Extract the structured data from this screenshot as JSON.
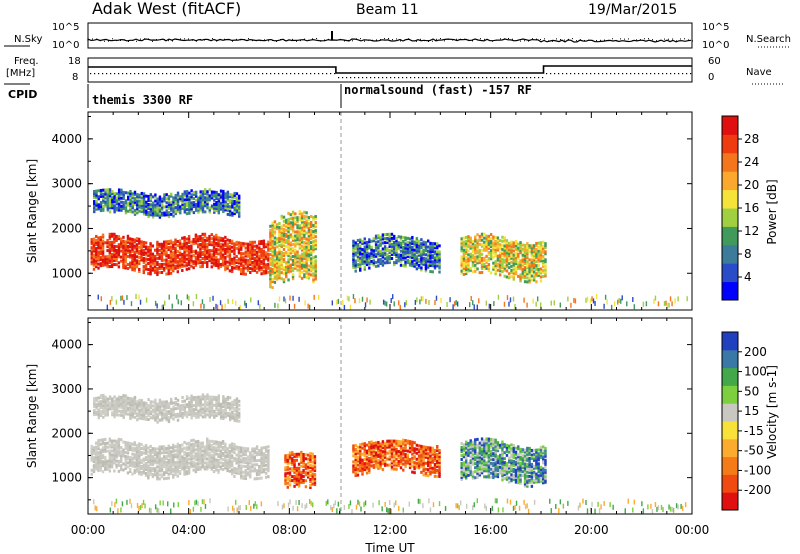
{
  "header": {
    "title": "Adak West (fitACF)",
    "beam": "Beam 11",
    "date": "19/Mar/2015"
  },
  "panels": {
    "nsky_label": "N.Sky",
    "nsky_ticks": [
      "10^5",
      "10^0"
    ],
    "nsearch_label": "N.Search",
    "nsearch_ticks": [
      "10^5",
      "10^0"
    ],
    "freq_label": "Freq.",
    "freq_unit": "[MHz]",
    "freq_ticks": [
      "18",
      "8"
    ],
    "nave_label": "Nave",
    "nave_ticks": [
      "60",
      "0"
    ],
    "cpid_label": "CPID",
    "cpid_segments": [
      {
        "start_hour": 0,
        "end_hour": 9.85,
        "text": "themis 3300 RF"
      },
      {
        "start_hour": 9.85,
        "end_hour": 24,
        "text": "normalsound (fast) -157 RF"
      }
    ]
  },
  "chart_data": [
    {
      "type": "heatmap",
      "name": "power",
      "xlabel": "",
      "ylabel": "Slant Range [km]",
      "xlim": [
        0,
        24
      ],
      "ylim": [
        180,
        4600
      ],
      "yticks": [
        1000,
        2000,
        3000,
        4000
      ],
      "colorbar": {
        "label": "Power [dB]",
        "ticks": [
          "28",
          "24",
          "20",
          "16",
          "12",
          "8",
          "4"
        ],
        "colors": [
          "#0000ff",
          "#2a4cc8",
          "#3c7c9a",
          "#3f9a5c",
          "#a0d040",
          "#f6e33a",
          "#fba92e",
          "#f5751c",
          "#ee3b10",
          "#e01010"
        ]
      },
      "echo_regions": [
        {
          "start": 0.1,
          "end": 7.2,
          "range_low": 1050,
          "range_high": 1800,
          "level": "high"
        },
        {
          "start": 7.2,
          "end": 9.0,
          "range_low": 700,
          "range_high": 2200,
          "level": "mid"
        },
        {
          "start": 0.2,
          "end": 6.0,
          "range_low": 2300,
          "range_high": 2800,
          "level": "low"
        },
        {
          "start": 10.5,
          "end": 14.0,
          "range_low": 1100,
          "range_high": 1800,
          "level": "low"
        },
        {
          "start": 14.8,
          "end": 18.2,
          "range_low": 900,
          "range_high": 1800,
          "level": "mid"
        }
      ]
    },
    {
      "type": "heatmap",
      "name": "velocity",
      "xlabel": "Time UT",
      "ylabel": "Slant Range [km]",
      "xlim": [
        0,
        24
      ],
      "ylim": [
        180,
        4600
      ],
      "xticks": [
        "00:00",
        "04:00",
        "08:00",
        "12:00",
        "16:00",
        "20:00",
        "00:00"
      ],
      "yticks": [
        1000,
        2000,
        3000,
        4000
      ],
      "colorbar": {
        "label": "Velocity [m s-1]",
        "ticks": [
          "200",
          "100",
          "50",
          "15",
          "-15",
          "-50",
          "-100",
          "-200"
        ],
        "colors": [
          "#e01010",
          "#f04a10",
          "#f57a18",
          "#fbab2e",
          "#f8e23a",
          "#c8c8c0",
          "#7cd040",
          "#42a84a",
          "#3a78a8",
          "#2040c0"
        ]
      },
      "echo_regions": [
        {
          "start": 0.1,
          "end": 7.2,
          "range_low": 1050,
          "range_high": 1800,
          "level": "zero"
        },
        {
          "start": 7.8,
          "end": 9.0,
          "range_low": 700,
          "range_high": 1500,
          "level": "negative"
        },
        {
          "start": 0.2,
          "end": 6.0,
          "range_low": 2300,
          "range_high": 2800,
          "level": "zero"
        },
        {
          "start": 10.5,
          "end": 14.0,
          "range_low": 1100,
          "range_high": 1800,
          "level": "negative"
        },
        {
          "start": 14.8,
          "end": 18.2,
          "range_low": 900,
          "range_high": 1800,
          "level": "positive"
        }
      ]
    }
  ]
}
